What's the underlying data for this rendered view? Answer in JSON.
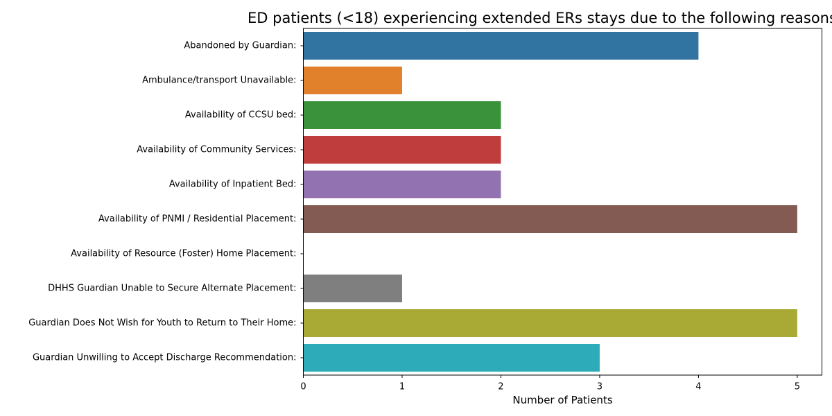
{
  "chart_data": {
    "type": "bar",
    "orientation": "horizontal",
    "title": "ED patients (<18) experiencing extended ERs stays due to the following reasons",
    "xlabel": "Number of Patients",
    "ylabel": "",
    "xlim": [
      0,
      5.25
    ],
    "xticks": [
      0,
      1,
      2,
      3,
      4,
      5
    ],
    "grid": false,
    "categories": [
      "Abandoned by Guardian:",
      "Ambulance/transport Unavailable:",
      "Availability of CCSU bed:",
      "Availability of Community Services:",
      "Availability of Inpatient Bed:",
      "Availability of PNMI / Residential Placement:",
      "Availability of Resource (Foster) Home Placement:",
      "DHHS Guardian Unable to Secure Alternate Placement:",
      "Guardian Does Not Wish for Youth to Return to Their Home:",
      "Guardian Unwilling to Accept Discharge Recommendation:"
    ],
    "values": [
      4,
      1,
      2,
      2,
      2,
      5,
      0,
      1,
      5,
      3
    ],
    "colors": [
      "#3274a1",
      "#e1812c",
      "#3a923a",
      "#c03d3e",
      "#9372b2",
      "#845b53",
      "#d684bd",
      "#7f7f7f",
      "#a9aa35",
      "#2eabb8"
    ]
  }
}
